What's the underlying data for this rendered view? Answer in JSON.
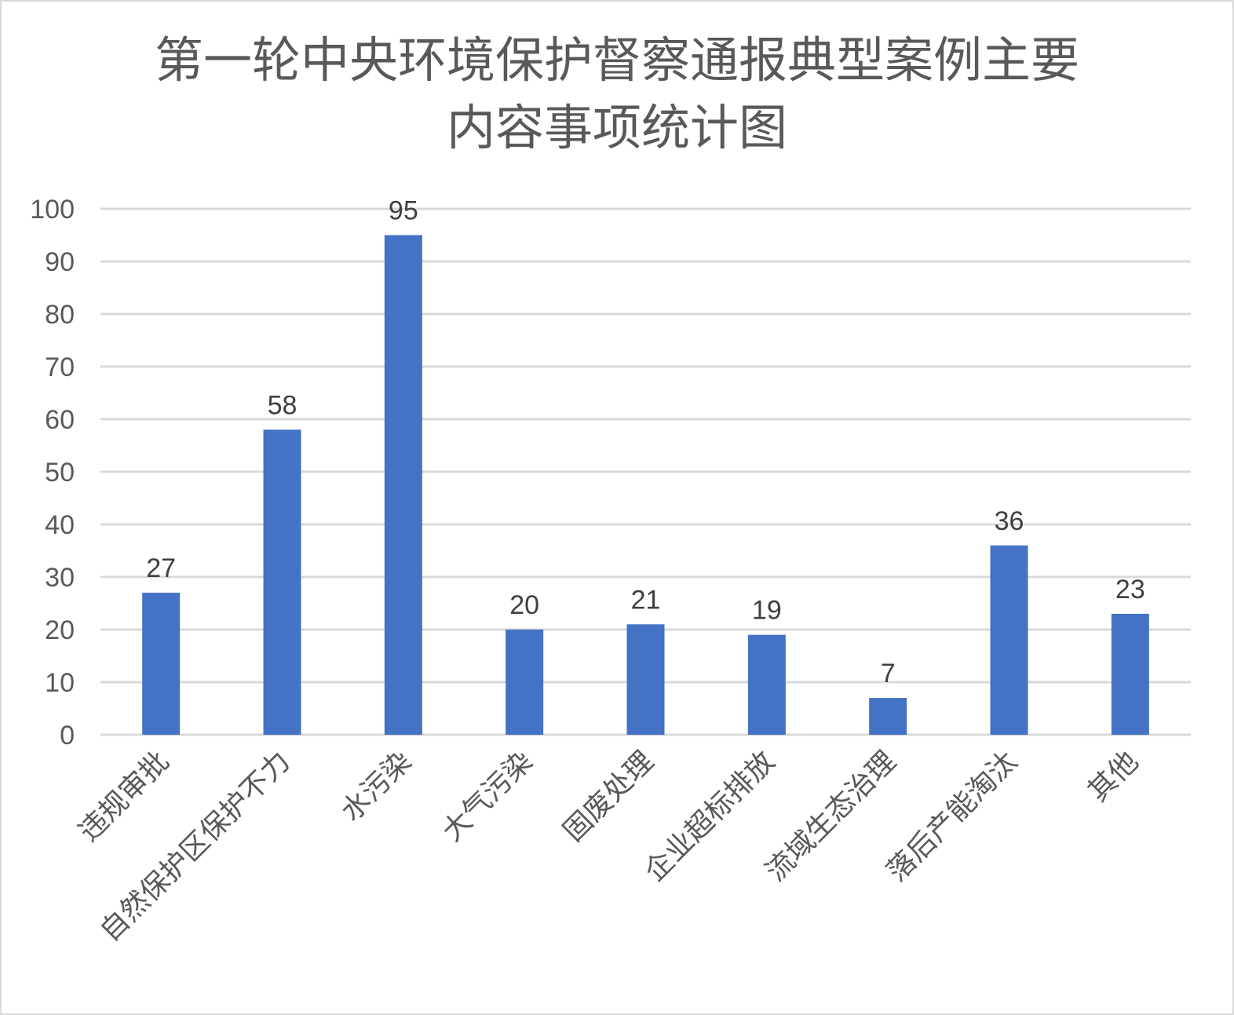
{
  "chart_data": {
    "type": "bar",
    "title": [
      "第一轮中央环境保护督察通报典型案例主要",
      "内容事项统计图"
    ],
    "categories": [
      "违规审批",
      "自然保护区保护不力",
      "水污染",
      "大气污染",
      "固废处理",
      "企业超标排放",
      "流域生态治理",
      "落后产能淘汰",
      "其他"
    ],
    "values": [
      27,
      58,
      95,
      20,
      21,
      19,
      7,
      36,
      23
    ],
    "xlabel": "",
    "ylabel": "",
    "ylim": [
      0,
      100
    ],
    "yticks": [
      0,
      10,
      20,
      30,
      40,
      50,
      60,
      70,
      80,
      90,
      100
    ],
    "grid": true,
    "legend": "none",
    "data_labels": true,
    "bar_color": "#4472c4",
    "grid_color": "#d9d9d9"
  }
}
